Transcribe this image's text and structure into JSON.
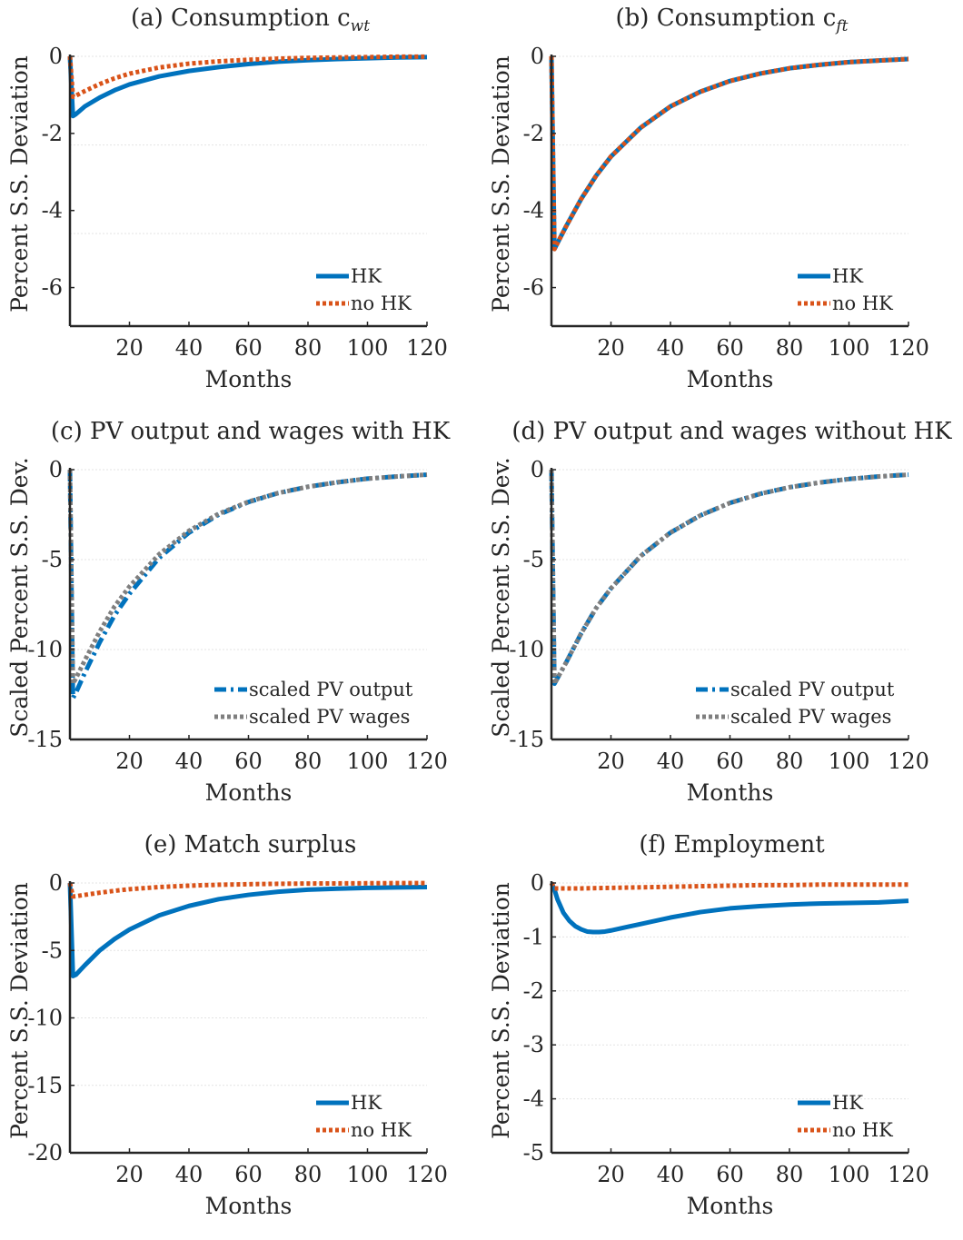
{
  "colors": {
    "blue": "#0072BD",
    "orange": "#D95319",
    "gray": "#7F7F7F",
    "axis": "#262626",
    "grid": "#e3e3e3"
  },
  "chart_data": [
    {
      "id": "a",
      "type": "line",
      "title": "(a) Consumption c",
      "title_sub": "wt",
      "xlabel": "Months",
      "ylabel": "Percent S.S. Deviation",
      "xlim": [
        0,
        120
      ],
      "ylim": [
        -7,
        0
      ],
      "xticks": [
        20,
        40,
        60,
        80,
        100,
        120
      ],
      "xtick_labels": [
        "20",
        "40",
        "60",
        "80",
        "100",
        "120"
      ],
      "yticks": [
        0,
        -2,
        -4,
        -6
      ],
      "ytick_labels": [
        "0",
        "-2",
        "-4",
        "-6"
      ],
      "grid_y": [
        0,
        -2.3,
        -4.6
      ],
      "legend": "bottom-right",
      "series": [
        {
          "name": "HK",
          "style": "solid",
          "color": "#0072BD",
          "x": [
            0,
            1,
            2,
            5,
            10,
            15,
            20,
            30,
            40,
            50,
            60,
            70,
            80,
            90,
            100,
            110,
            120
          ],
          "y": [
            0,
            -1.55,
            -1.5,
            -1.3,
            -1.07,
            -0.88,
            -0.73,
            -0.52,
            -0.38,
            -0.28,
            -0.2,
            -0.14,
            -0.1,
            -0.07,
            -0.05,
            -0.03,
            -0.02
          ]
        },
        {
          "name": "no HK",
          "style": "dotted",
          "color": "#D95319",
          "x": [
            0,
            1,
            2,
            5,
            10,
            15,
            20,
            30,
            40,
            50,
            60,
            70,
            80,
            90,
            100,
            110,
            120
          ],
          "y": [
            0,
            -1.05,
            -1.02,
            -0.9,
            -0.72,
            -0.57,
            -0.45,
            -0.29,
            -0.19,
            -0.13,
            -0.09,
            -0.06,
            -0.04,
            -0.03,
            -0.02,
            -0.01,
            -0.01
          ]
        }
      ]
    },
    {
      "id": "b",
      "type": "line",
      "title": "(b) Consumption c",
      "title_sub": "ft",
      "xlabel": "Months",
      "ylabel": "Percent S.S. Deviation",
      "xlim": [
        0,
        120
      ],
      "ylim": [
        -7,
        0
      ],
      "xticks": [
        20,
        40,
        60,
        80,
        100,
        120
      ],
      "xtick_labels": [
        "20",
        "40",
        "60",
        "80",
        "100",
        "120"
      ],
      "yticks": [
        0,
        -2,
        -4,
        -6
      ],
      "ytick_labels": [
        "0",
        "-2",
        "-4",
        "-6"
      ],
      "grid_y": [
        0,
        -2.3,
        -4.6
      ],
      "legend": "bottom-right",
      "series": [
        {
          "name": "HK",
          "style": "solid",
          "color": "#0072BD",
          "x": [
            0,
            1,
            2,
            5,
            10,
            15,
            20,
            30,
            40,
            50,
            60,
            70,
            80,
            90,
            100,
            110,
            120
          ],
          "y": [
            0,
            -5.0,
            -4.85,
            -4.4,
            -3.7,
            -3.1,
            -2.6,
            -1.85,
            -1.3,
            -0.92,
            -0.64,
            -0.45,
            -0.31,
            -0.22,
            -0.15,
            -0.11,
            -0.07
          ]
        },
        {
          "name": "no HK",
          "style": "dotted",
          "color": "#D95319",
          "x": [
            0,
            1,
            2,
            5,
            10,
            15,
            20,
            30,
            40,
            50,
            60,
            70,
            80,
            90,
            100,
            110,
            120
          ],
          "y": [
            0,
            -5.0,
            -4.85,
            -4.4,
            -3.7,
            -3.1,
            -2.6,
            -1.85,
            -1.3,
            -0.92,
            -0.64,
            -0.45,
            -0.31,
            -0.22,
            -0.15,
            -0.11,
            -0.07
          ]
        }
      ]
    },
    {
      "id": "c",
      "type": "line",
      "title": "(c) PV output and wages with HK",
      "title_sub": "",
      "xlabel": "Months",
      "ylabel": "Scaled Percent S.S. Dev.",
      "xlim": [
        0,
        120
      ],
      "ylim": [
        -15,
        0
      ],
      "xticks": [
        20,
        40,
        60,
        80,
        100,
        120
      ],
      "xtick_labels": [
        "20",
        "40",
        "60",
        "80",
        "100",
        "120"
      ],
      "yticks": [
        0,
        -5,
        -10,
        -15
      ],
      "ytick_labels": [
        "0",
        "-5",
        "-10",
        "-15"
      ],
      "grid_y": [
        0,
        -5,
        -10
      ],
      "legend": "bottom-right",
      "series": [
        {
          "name": "scaled PV output",
          "style": "dashdot",
          "color": "#0072BD",
          "x": [
            0,
            1,
            2,
            5,
            10,
            15,
            20,
            30,
            40,
            50,
            60,
            70,
            80,
            90,
            100,
            110,
            120
          ],
          "y": [
            0,
            -12.7,
            -12.4,
            -11.3,
            -9.6,
            -8.1,
            -6.9,
            -4.9,
            -3.5,
            -2.5,
            -1.8,
            -1.3,
            -0.95,
            -0.7,
            -0.5,
            -0.38,
            -0.28
          ]
        },
        {
          "name": "scaled PV wages",
          "style": "dotted",
          "color": "#7F7F7F",
          "x": [
            0,
            1,
            2,
            5,
            10,
            15,
            20,
            30,
            40,
            50,
            60,
            70,
            80,
            90,
            100,
            110,
            120
          ],
          "y": [
            0,
            -11.9,
            -11.6,
            -10.6,
            -9.0,
            -7.6,
            -6.5,
            -4.7,
            -3.4,
            -2.45,
            -1.78,
            -1.3,
            -0.95,
            -0.7,
            -0.5,
            -0.38,
            -0.28
          ]
        }
      ]
    },
    {
      "id": "d",
      "type": "line",
      "title": "(d) PV output and wages without HK",
      "title_sub": "",
      "xlabel": "Months",
      "ylabel": "Scaled Percent S.S. Dev.",
      "xlim": [
        0,
        120
      ],
      "ylim": [
        -15,
        0
      ],
      "xticks": [
        20,
        40,
        60,
        80,
        100,
        120
      ],
      "xtick_labels": [
        "20",
        "40",
        "60",
        "80",
        "100",
        "120"
      ],
      "yticks": [
        0,
        -5,
        -10,
        -15
      ],
      "ytick_labels": [
        "0",
        "-5",
        "-10",
        "-15"
      ],
      "grid_y": [
        0,
        -5,
        -10
      ],
      "legend": "bottom-right",
      "series": [
        {
          "name": "scaled PV output",
          "style": "dashdot",
          "color": "#0072BD",
          "x": [
            0,
            1,
            2,
            5,
            10,
            15,
            20,
            30,
            40,
            50,
            60,
            70,
            80,
            90,
            100,
            110,
            120
          ],
          "y": [
            0,
            -11.9,
            -11.6,
            -10.7,
            -9.1,
            -7.7,
            -6.6,
            -4.8,
            -3.5,
            -2.55,
            -1.85,
            -1.35,
            -0.98,
            -0.72,
            -0.52,
            -0.38,
            -0.28
          ]
        },
        {
          "name": "scaled PV wages",
          "style": "dotted",
          "color": "#7F7F7F",
          "x": [
            0,
            1,
            2,
            5,
            10,
            15,
            20,
            30,
            40,
            50,
            60,
            70,
            80,
            90,
            100,
            110,
            120
          ],
          "y": [
            0,
            -11.9,
            -11.6,
            -10.7,
            -9.1,
            -7.7,
            -6.6,
            -4.8,
            -3.5,
            -2.55,
            -1.85,
            -1.35,
            -0.98,
            -0.72,
            -0.52,
            -0.38,
            -0.28
          ]
        }
      ]
    },
    {
      "id": "e",
      "type": "line",
      "title": "(e) Match surplus",
      "title_sub": "",
      "xlabel": "Months",
      "ylabel": "Percent S.S. Deviation",
      "xlim": [
        0,
        120
      ],
      "ylim": [
        -20,
        0
      ],
      "xticks": [
        20,
        40,
        60,
        80,
        100,
        120
      ],
      "xtick_labels": [
        "20",
        "40",
        "60",
        "80",
        "100",
        "120"
      ],
      "yticks": [
        0,
        -5,
        -10,
        -15,
        -20
      ],
      "ytick_labels": [
        "0",
        "-5",
        "-10",
        "-15",
        "-20"
      ],
      "grid_y": [
        0,
        -5,
        -10,
        -15
      ],
      "legend": "bottom-right",
      "series": [
        {
          "name": "HK",
          "style": "solid",
          "color": "#0072BD",
          "x": [
            0,
            1,
            2,
            5,
            10,
            15,
            20,
            30,
            40,
            50,
            60,
            70,
            80,
            90,
            100,
            110,
            120
          ],
          "y": [
            0,
            -6.9,
            -6.8,
            -6.1,
            -5.0,
            -4.15,
            -3.45,
            -2.4,
            -1.7,
            -1.2,
            -0.88,
            -0.65,
            -0.5,
            -0.42,
            -0.36,
            -0.33,
            -0.3
          ]
        },
        {
          "name": "no HK",
          "style": "dotted",
          "color": "#D95319",
          "x": [
            0,
            1,
            2,
            5,
            10,
            15,
            20,
            30,
            40,
            50,
            60,
            70,
            80,
            90,
            100,
            110,
            120
          ],
          "y": [
            0,
            -1.0,
            -0.98,
            -0.88,
            -0.72,
            -0.58,
            -0.46,
            -0.3,
            -0.2,
            -0.13,
            -0.09,
            -0.06,
            -0.04,
            -0.03,
            -0.02,
            -0.01,
            -0.01
          ]
        }
      ]
    },
    {
      "id": "f",
      "type": "line",
      "title": "(f) Employment",
      "title_sub": "",
      "xlabel": "Months",
      "ylabel": "Percent S.S. Deviation",
      "xlim": [
        0,
        120
      ],
      "ylim": [
        -5,
        0
      ],
      "xticks": [
        20,
        40,
        60,
        80,
        100,
        120
      ],
      "xtick_labels": [
        "20",
        "40",
        "60",
        "80",
        "100",
        "120"
      ],
      "yticks": [
        0,
        -1,
        -2,
        -3,
        -4,
        -5
      ],
      "ytick_labels": [
        "0",
        "-1",
        "-2",
        "-3",
        "-4",
        "-5"
      ],
      "grid_y": [
        0,
        -1,
        -2,
        -3,
        -4
      ],
      "legend": "bottom-right",
      "series": [
        {
          "name": "HK",
          "style": "solid",
          "color": "#0072BD",
          "x": [
            0,
            1,
            2,
            4,
            6,
            8,
            10,
            12,
            14,
            16,
            18,
            20,
            25,
            30,
            40,
            50,
            60,
            70,
            80,
            90,
            100,
            110,
            120
          ],
          "y": [
            0,
            -0.12,
            -0.3,
            -0.55,
            -0.7,
            -0.8,
            -0.86,
            -0.9,
            -0.91,
            -0.91,
            -0.9,
            -0.88,
            -0.82,
            -0.76,
            -0.64,
            -0.54,
            -0.47,
            -0.43,
            -0.4,
            -0.38,
            -0.37,
            -0.36,
            -0.33
          ]
        },
        {
          "name": "no HK",
          "style": "dotted",
          "color": "#D95319",
          "x": [
            0,
            1,
            2,
            5,
            10,
            20,
            30,
            40,
            50,
            60,
            70,
            80,
            90,
            100,
            110,
            120
          ],
          "y": [
            0,
            -0.1,
            -0.1,
            -0.1,
            -0.1,
            -0.09,
            -0.08,
            -0.07,
            -0.06,
            -0.05,
            -0.04,
            -0.04,
            -0.03,
            -0.03,
            -0.03,
            -0.03
          ]
        }
      ]
    }
  ]
}
